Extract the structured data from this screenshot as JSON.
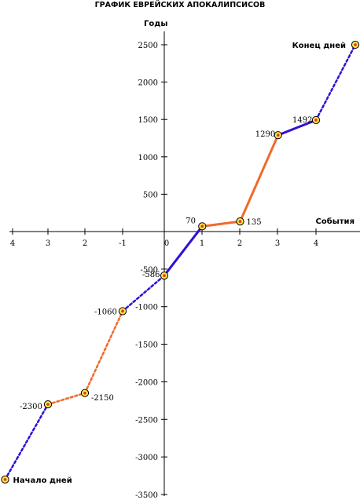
{
  "chart_data": {
    "type": "line",
    "title": "ГРАФИК ЕВРЕЙСКИХ АПОКАЛИПСИСОВ",
    "xlabel": "События",
    "ylabel": "Годы",
    "x_tick_labels": [
      "4",
      "3",
      "2",
      "-1",
      "0",
      "1",
      "2",
      "3",
      "4"
    ],
    "y_ticks": [
      2500,
      2000,
      1500,
      1000,
      500,
      -500,
      -1000,
      -1500,
      -2000,
      -2500,
      -3000,
      -3500
    ],
    "y_tick_labels": [
      "2500",
      "2000",
      "1500",
      "1000",
      "500",
      "-500",
      "-1000",
      "-1500",
      "-2000",
      "-2500",
      "-3000",
      "-3500"
    ],
    "ylim": [
      -3500,
      2500
    ],
    "points": [
      {
        "x": -4.2,
        "y": -3300,
        "label": ""
      },
      {
        "x": -3,
        "y": -2300,
        "label": "-2300"
      },
      {
        "x": -2,
        "y": -2150,
        "label": "-2150"
      },
      {
        "x": -1,
        "y": -1060,
        "label": "-1060"
      },
      {
        "x": 0,
        "y": -586,
        "label": "-586"
      },
      {
        "x": 1,
        "y": 70,
        "label": "70"
      },
      {
        "x": 2,
        "y": 135,
        "label": "135"
      },
      {
        "x": 3,
        "y": 1290,
        "label": "1290"
      },
      {
        "x": 4,
        "y": 1492,
        "label": "1492"
      },
      {
        "x": 5,
        "y": 2500,
        "label": ""
      }
    ],
    "segments": [
      {
        "from": 0,
        "to": 1,
        "color": "#3010d8",
        "style": "dashed"
      },
      {
        "from": 1,
        "to": 2,
        "color": "#f06a2a",
        "style": "dashed"
      },
      {
        "from": 2,
        "to": 3,
        "color": "#f06a2a",
        "style": "dashed"
      },
      {
        "from": 3,
        "to": 4,
        "color": "#3010d8",
        "style": "dashed"
      },
      {
        "from": 4,
        "to": 5,
        "color": "#3010d8",
        "style": "solid"
      },
      {
        "from": 5,
        "to": 6,
        "color": "#f06a2a",
        "style": "solid"
      },
      {
        "from": 6,
        "to": 7,
        "color": "#f06a2a",
        "style": "solid"
      },
      {
        "from": 7,
        "to": 8,
        "color": "#3010d8",
        "style": "solid"
      },
      {
        "from": 8,
        "to": 9,
        "color": "#3010d8",
        "style": "dashed"
      }
    ],
    "annotations": [
      {
        "text": "Начало дней",
        "point": 0
      },
      {
        "text": "Конец дней",
        "point": 9
      }
    ],
    "colors": {
      "blue": "#3010d8",
      "orange": "#f06a2a",
      "marker_fill": "#fde94a",
      "marker_center": "#e83a2a"
    }
  }
}
